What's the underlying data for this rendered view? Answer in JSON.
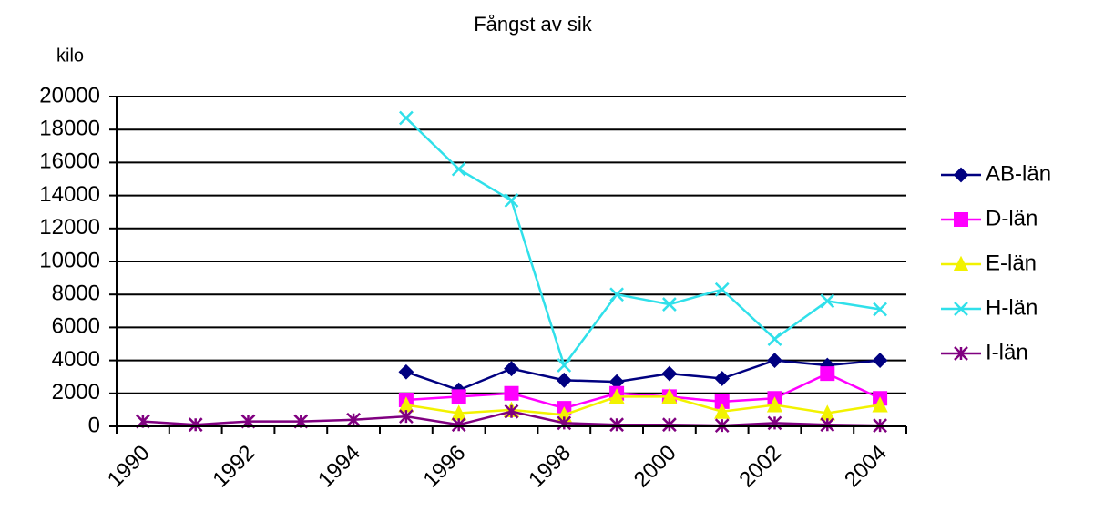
{
  "chart_data": {
    "type": "line",
    "title": "Fångst av sik",
    "y_label": "kilo",
    "categories": [
      "1990",
      null,
      "1992",
      null,
      "1994",
      null,
      "1996",
      null,
      "1998",
      null,
      "2000",
      null,
      "2002",
      null,
      "2004"
    ],
    "ylim": [
      0,
      20000
    ],
    "yticks": [
      0,
      2000,
      4000,
      6000,
      8000,
      10000,
      12000,
      14000,
      16000,
      18000,
      20000
    ],
    "grid": true,
    "legend": "right",
    "series": [
      {
        "name": "AB-län",
        "color": "#000080",
        "marker": "diamond",
        "values": [
          null,
          null,
          null,
          null,
          null,
          3300,
          2200,
          3500,
          2800,
          2700,
          3200,
          2900,
          4000,
          3700,
          4000
        ]
      },
      {
        "name": "D-län",
        "color": "#ff00ff",
        "marker": "square",
        "values": [
          null,
          null,
          null,
          null,
          null,
          1600,
          1800,
          2000,
          1100,
          2000,
          1800,
          1500,
          1700,
          3200,
          1700
        ]
      },
      {
        "name": "E-län",
        "color": "#f2f200",
        "marker": "triangle",
        "values": [
          null,
          null,
          null,
          null,
          null,
          1300,
          800,
          1000,
          700,
          1800,
          1800,
          900,
          1300,
          800,
          1300
        ]
      },
      {
        "name": "H-län",
        "color": "#30e0ea",
        "marker": "x",
        "values": [
          null,
          null,
          null,
          null,
          null,
          18700,
          15600,
          13700,
          3700,
          8000,
          7400,
          8300,
          5300,
          7600,
          7100
        ]
      },
      {
        "name": "I-län",
        "color": "#800080",
        "marker": "star",
        "values": [
          300,
          100,
          300,
          300,
          400,
          600,
          100,
          900,
          200,
          100,
          100,
          50,
          200,
          100,
          50
        ]
      }
    ]
  }
}
